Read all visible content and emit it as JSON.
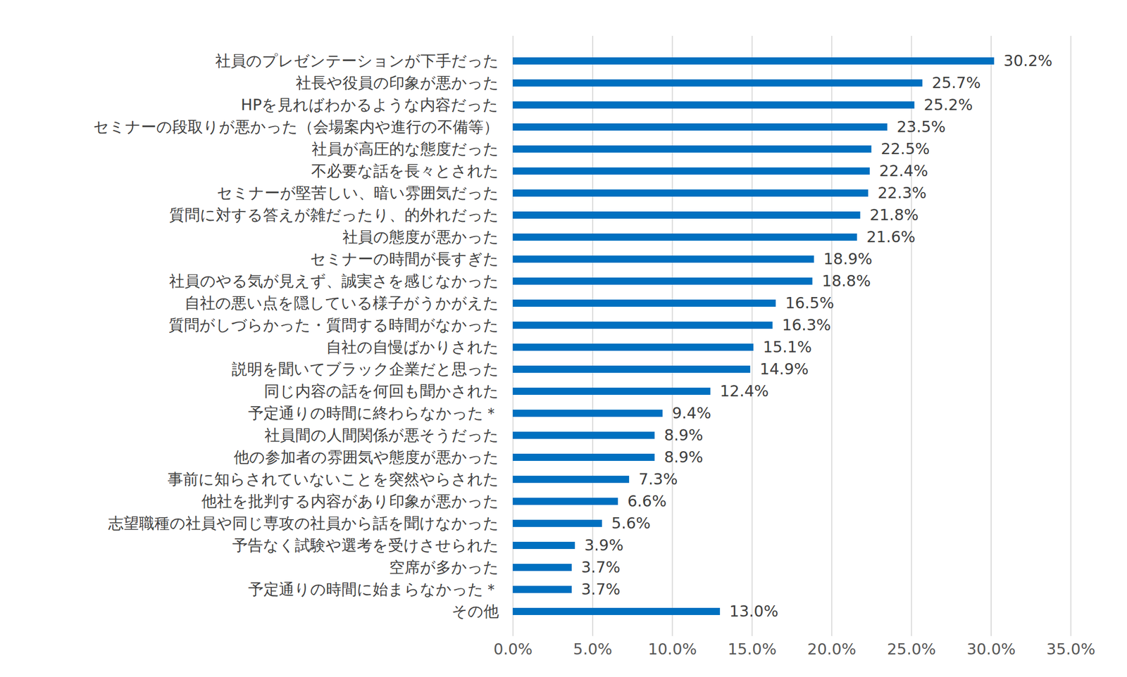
{
  "chart_data": {
    "type": "bar",
    "orientation": "horizontal",
    "categories": [
      "社員のプレゼンテーションが下手だった",
      "社長や役員の印象が悪かった",
      "HPを見ればわかるような内容だった",
      "セミナーの段取りが悪かった（会場案内や進行の不備等）",
      "社員が高圧的な態度だった",
      "不必要な話を長々とされた",
      "セミナーが堅苦しい、暗い雰囲気だった",
      "質問に対する答えが雑だったり、的外れだった",
      "社員の態度が悪かった",
      "セミナーの時間が長すぎた",
      "社員のやる気が見えず、誠実さを感じなかった",
      "自社の悪い点を隠している様子がうかがえた",
      "質問がしづらかった・質問する時間がなかった",
      "自社の自慢ばかりされた",
      "説明を聞いてブラック企業だと思った",
      "同じ内容の話を何回も聞かされた",
      "予定通りの時間に終わらなかった＊",
      "社員間の人間関係が悪そうだった",
      "他の参加者の雰囲気や態度が悪かった",
      "事前に知らされていないことを突然やらされた",
      "他社を批判する内容があり印象が悪かった",
      "志望職種の社員や同じ専攻の社員から話を聞けなかった",
      "予告なく試験や選考を受けさせられた",
      "空席が多かった",
      "予定通りの時間に始まらなかった＊",
      "その他"
    ],
    "values": [
      30.2,
      25.7,
      25.2,
      23.5,
      22.5,
      22.4,
      22.3,
      21.8,
      21.6,
      18.9,
      18.8,
      16.5,
      16.3,
      15.1,
      14.9,
      12.4,
      9.4,
      8.9,
      8.9,
      7.3,
      6.6,
      5.6,
      3.9,
      3.7,
      3.7,
      13.0
    ],
    "value_labels": [
      "30.2%",
      "25.7%",
      "25.2%",
      "23.5%",
      "22.5%",
      "22.4%",
      "22.3%",
      "21.8%",
      "21.6%",
      "18.9%",
      "18.8%",
      "16.5%",
      "16.3%",
      "15.1%",
      "14.9%",
      "12.4%",
      "9.4%",
      "8.9%",
      "8.9%",
      "7.3%",
      "6.6%",
      "5.6%",
      "3.9%",
      "3.7%",
      "3.7%",
      "13.0%"
    ],
    "data_labels": true,
    "color": "#0070c0",
    "xlim": [
      0,
      35
    ],
    "xticks": [
      {
        "value": 0,
        "label": "0.0%"
      },
      {
        "value": 5,
        "label": "5.0%"
      },
      {
        "value": 10,
        "label": "10.0%"
      },
      {
        "value": 15,
        "label": "15.0%"
      },
      {
        "value": 20,
        "label": "20.0%"
      },
      {
        "value": 25,
        "label": "25.0%"
      },
      {
        "value": 30,
        "label": "30.0%"
      },
      {
        "value": 35,
        "label": "35.0%"
      }
    ],
    "grid": true
  }
}
